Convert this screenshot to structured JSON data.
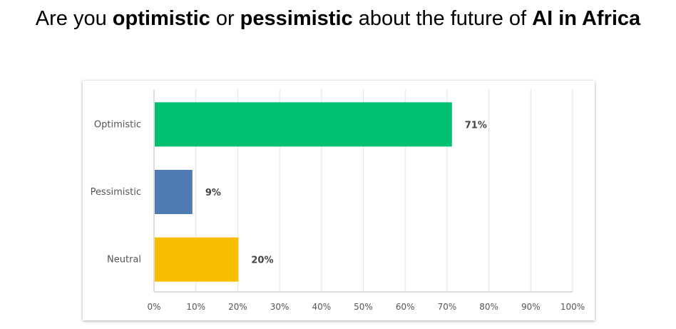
{
  "title": {
    "p1": "Are you ",
    "b1": "optimistic",
    "p2": " or ",
    "b2": "pessimistic",
    "p3": " about the future of ",
    "b3": "AI in Africa"
  },
  "chart_data": {
    "type": "bar",
    "orientation": "horizontal",
    "categories": [
      "Optimistic",
      "Pessimistic",
      "Neutral"
    ],
    "values": [
      71,
      9,
      20
    ],
    "value_labels": [
      "71%",
      "9%",
      "20%"
    ],
    "colors": [
      "#00BF6F",
      "#507CB6",
      "#F9BE00"
    ],
    "xlim": [
      0,
      100
    ],
    "ticks": [
      0,
      10,
      20,
      30,
      40,
      50,
      60,
      70,
      80,
      90,
      100
    ],
    "tick_labels": [
      "0%",
      "10%",
      "20%",
      "30%",
      "40%",
      "50%",
      "60%",
      "70%",
      "80%",
      "90%",
      "100%"
    ],
    "grid": true
  }
}
